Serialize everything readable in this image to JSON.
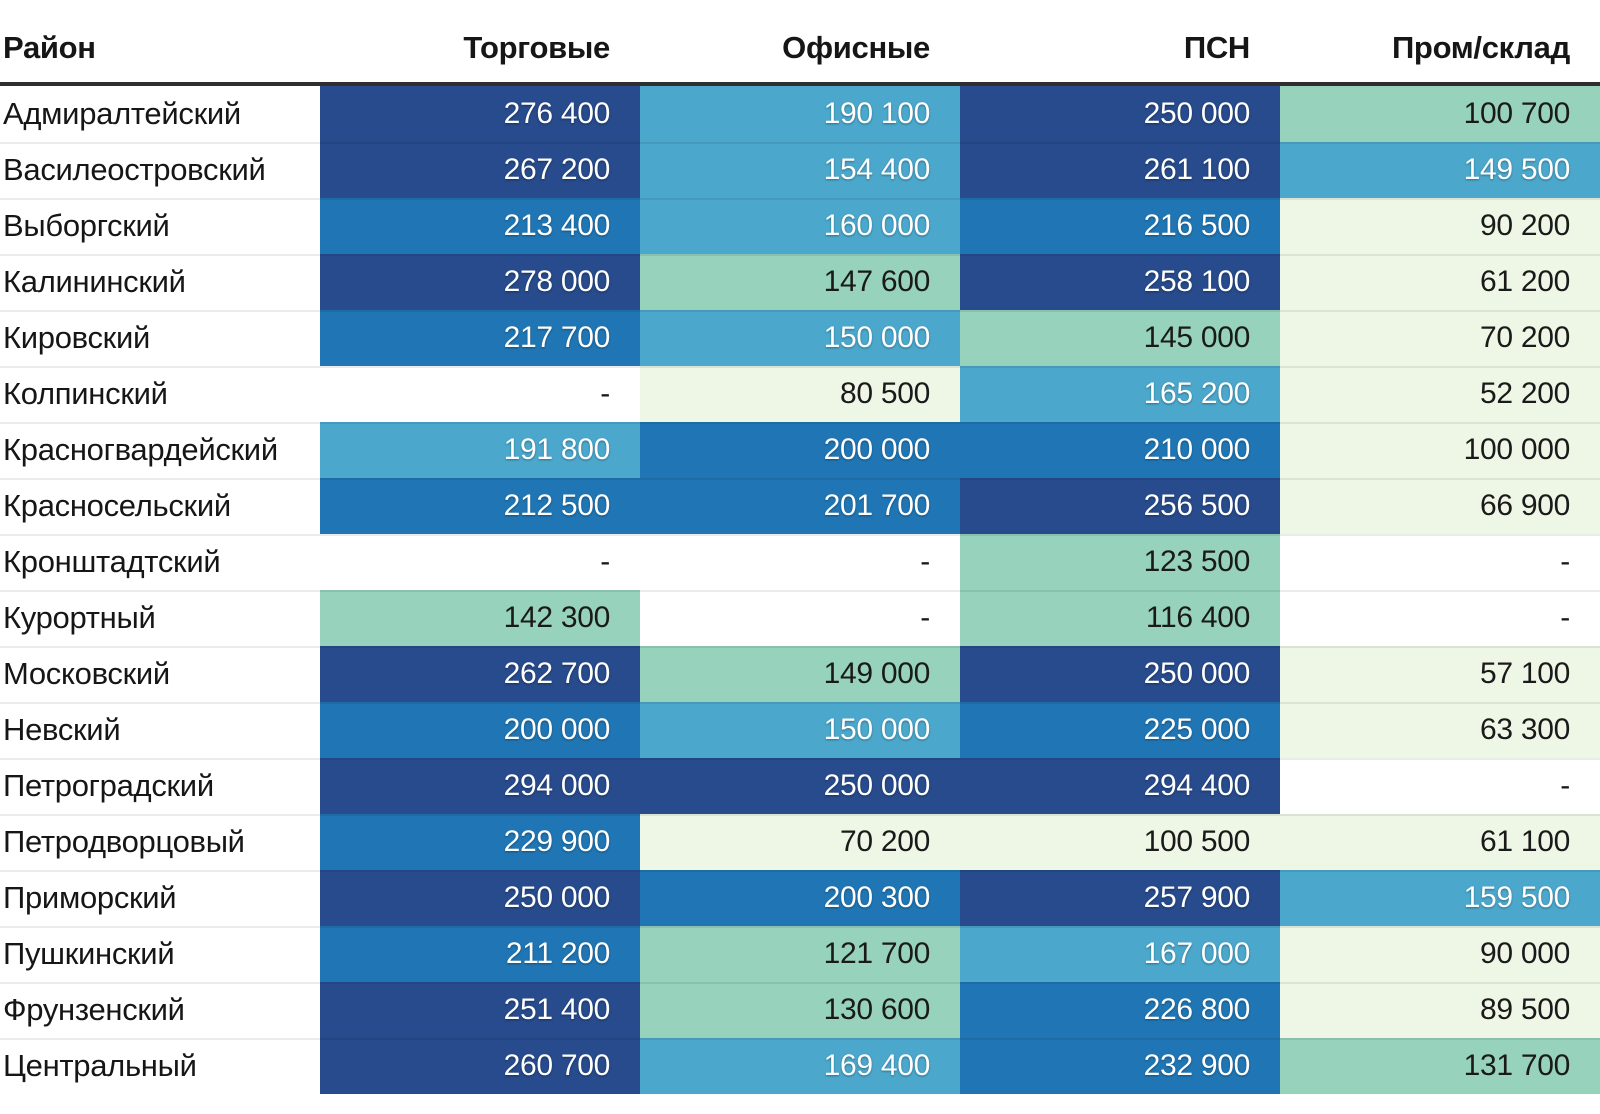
{
  "palette": {
    "levels": {
      "navy": {
        "bg": "#274b8c",
        "text": "#ffffff"
      },
      "blue": {
        "bg": "#2076b4",
        "text": "#ffffff"
      },
      "lightblue": {
        "bg": "#4ba8cc",
        "text": "#ffffff"
      },
      "teal": {
        "bg": "#96d2bc",
        "text": "#1a1a1a"
      },
      "pale": {
        "bg": "#eef7e5",
        "text": "#1a1a1a"
      },
      "none": {
        "bg": "#ffffff",
        "text": "#1a1a1a"
      }
    },
    "header_text": "#161616",
    "header_border": "#2e2e2e"
  },
  "table": {
    "columns": [
      {
        "label": "Район"
      },
      {
        "label": "Торговые"
      },
      {
        "label": "Офисные"
      },
      {
        "label": "ПСН"
      },
      {
        "label": "Пром/склад"
      }
    ],
    "rows": [
      {
        "district": "Адмиралтейский",
        "cells": [
          {
            "value": "276 400",
            "level": "navy"
          },
          {
            "value": "190 100",
            "level": "lightblue"
          },
          {
            "value": "250 000",
            "level": "navy"
          },
          {
            "value": "100 700",
            "level": "teal"
          }
        ]
      },
      {
        "district": "Василеостровский",
        "cells": [
          {
            "value": "267 200",
            "level": "navy"
          },
          {
            "value": "154 400",
            "level": "lightblue"
          },
          {
            "value": "261 100",
            "level": "navy"
          },
          {
            "value": "149 500",
            "level": "lightblue"
          }
        ]
      },
      {
        "district": "Выборгский",
        "cells": [
          {
            "value": "213 400",
            "level": "blue"
          },
          {
            "value": "160 000",
            "level": "lightblue"
          },
          {
            "value": "216 500",
            "level": "blue"
          },
          {
            "value": "90 200",
            "level": "pale"
          }
        ]
      },
      {
        "district": "Калининский",
        "cells": [
          {
            "value": "278 000",
            "level": "navy"
          },
          {
            "value": "147 600",
            "level": "teal"
          },
          {
            "value": "258 100",
            "level": "navy"
          },
          {
            "value": "61 200",
            "level": "pale"
          }
        ]
      },
      {
        "district": "Кировский",
        "cells": [
          {
            "value": "217 700",
            "level": "blue"
          },
          {
            "value": "150 000",
            "level": "lightblue"
          },
          {
            "value": "145 000",
            "level": "teal"
          },
          {
            "value": "70 200",
            "level": "pale"
          }
        ]
      },
      {
        "district": "Колпинский",
        "cells": [
          {
            "value": "-",
            "level": "none"
          },
          {
            "value": "80 500",
            "level": "pale"
          },
          {
            "value": "165 200",
            "level": "lightblue"
          },
          {
            "value": "52 200",
            "level": "pale"
          }
        ]
      },
      {
        "district": "Красногвардейский",
        "cells": [
          {
            "value": "191 800",
            "level": "lightblue"
          },
          {
            "value": "200 000",
            "level": "blue"
          },
          {
            "value": "210 000",
            "level": "blue"
          },
          {
            "value": "100 000",
            "level": "pale"
          }
        ]
      },
      {
        "district": "Красносельский",
        "cells": [
          {
            "value": "212 500",
            "level": "blue"
          },
          {
            "value": "201 700",
            "level": "blue"
          },
          {
            "value": "256 500",
            "level": "navy"
          },
          {
            "value": "66 900",
            "level": "pale"
          }
        ]
      },
      {
        "district": "Кронштадтский",
        "cells": [
          {
            "value": "-",
            "level": "none"
          },
          {
            "value": "-",
            "level": "none"
          },
          {
            "value": "123 500",
            "level": "teal"
          },
          {
            "value": "-",
            "level": "none"
          }
        ]
      },
      {
        "district": "Курортный",
        "cells": [
          {
            "value": "142 300",
            "level": "teal"
          },
          {
            "value": "-",
            "level": "none"
          },
          {
            "value": "116 400",
            "level": "teal"
          },
          {
            "value": "-",
            "level": "none"
          }
        ]
      },
      {
        "district": "Московский",
        "cells": [
          {
            "value": "262 700",
            "level": "navy"
          },
          {
            "value": "149 000",
            "level": "teal"
          },
          {
            "value": "250 000",
            "level": "navy"
          },
          {
            "value": "57 100",
            "level": "pale"
          }
        ]
      },
      {
        "district": "Невский",
        "cells": [
          {
            "value": "200 000",
            "level": "blue"
          },
          {
            "value": "150 000",
            "level": "lightblue"
          },
          {
            "value": "225 000",
            "level": "blue"
          },
          {
            "value": "63 300",
            "level": "pale"
          }
        ]
      },
      {
        "district": "Петроградский",
        "cells": [
          {
            "value": "294 000",
            "level": "navy"
          },
          {
            "value": "250 000",
            "level": "navy"
          },
          {
            "value": "294 400",
            "level": "navy"
          },
          {
            "value": "-",
            "level": "none"
          }
        ]
      },
      {
        "district": "Петродворцовый",
        "cells": [
          {
            "value": "229 900",
            "level": "blue"
          },
          {
            "value": "70 200",
            "level": "pale"
          },
          {
            "value": "100 500",
            "level": "pale"
          },
          {
            "value": "61 100",
            "level": "pale"
          }
        ]
      },
      {
        "district": "Приморский",
        "cells": [
          {
            "value": "250 000",
            "level": "navy"
          },
          {
            "value": "200 300",
            "level": "blue"
          },
          {
            "value": "257 900",
            "level": "navy"
          },
          {
            "value": "159 500",
            "level": "lightblue"
          }
        ]
      },
      {
        "district": "Пушкинский",
        "cells": [
          {
            "value": "211 200",
            "level": "blue"
          },
          {
            "value": "121 700",
            "level": "teal"
          },
          {
            "value": "167 000",
            "level": "lightblue"
          },
          {
            "value": "90 000",
            "level": "pale"
          }
        ]
      },
      {
        "district": "Фрунзенский",
        "cells": [
          {
            "value": "251 400",
            "level": "navy"
          },
          {
            "value": "130 600",
            "level": "teal"
          },
          {
            "value": "226 800",
            "level": "blue"
          },
          {
            "value": "89 500",
            "level": "pale"
          }
        ]
      },
      {
        "district": "Центральный",
        "cells": [
          {
            "value": "260 700",
            "level": "navy"
          },
          {
            "value": "169 400",
            "level": "lightblue"
          },
          {
            "value": "232 900",
            "level": "blue"
          },
          {
            "value": "131 700",
            "level": "teal"
          }
        ]
      }
    ]
  },
  "chart_data": {
    "type": "heatmap",
    "title": "",
    "row_header": "Район",
    "categories": [
      "Адмиралтейский",
      "Василеостровский",
      "Выборгский",
      "Калининский",
      "Кировский",
      "Колпинский",
      "Красногвардейский",
      "Красносельский",
      "Кронштадтский",
      "Курортный",
      "Московский",
      "Невский",
      "Петроградский",
      "Петродворцовый",
      "Приморский",
      "Пушкинский",
      "Фрунзенский",
      "Центральный"
    ],
    "columns": [
      "Торговые",
      "Офисные",
      "ПСН",
      "Пром/склад"
    ],
    "values": [
      [
        276400,
        190100,
        250000,
        100700
      ],
      [
        267200,
        154400,
        261100,
        149500
      ],
      [
        213400,
        160000,
        216500,
        90200
      ],
      [
        278000,
        147600,
        258100,
        61200
      ],
      [
        217700,
        150000,
        145000,
        70200
      ],
      [
        null,
        80500,
        165200,
        52200
      ],
      [
        191800,
        200000,
        210000,
        100000
      ],
      [
        212500,
        201700,
        256500,
        66900
      ],
      [
        null,
        null,
        123500,
        null
      ],
      [
        142300,
        null,
        116400,
        null
      ],
      [
        262700,
        149000,
        250000,
        57100
      ],
      [
        200000,
        150000,
        225000,
        63300
      ],
      [
        294000,
        250000,
        294400,
        null
      ],
      [
        229900,
        70200,
        100500,
        61100
      ],
      [
        250000,
        200300,
        257900,
        159500
      ],
      [
        211200,
        121700,
        167000,
        90000
      ],
      [
        251400,
        130600,
        226800,
        89500
      ],
      [
        260700,
        169400,
        232900,
        131700
      ]
    ],
    "missing_marker": "-",
    "color_scale_note": "per-column quantile scale: pale-green = low, teal = mid, light-blue = upper-mid, blue = high, navy = highest",
    "legend": "none",
    "grid": "row dividers only"
  }
}
